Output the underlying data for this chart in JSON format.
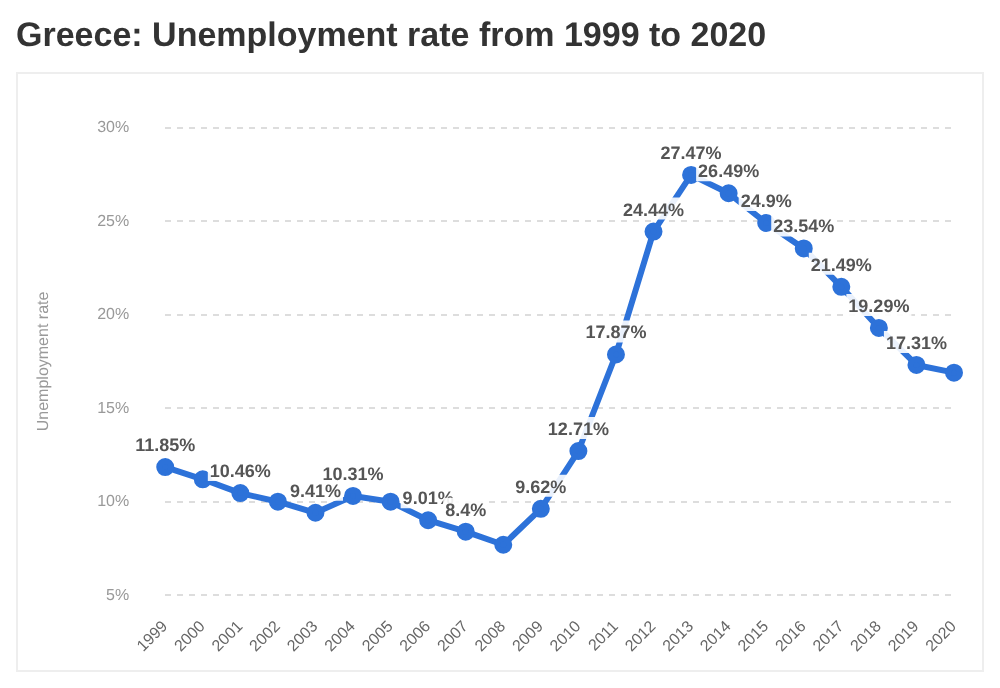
{
  "chart_data": {
    "type": "line",
    "title": "Greece: Unemployment rate from 1999 to 2020",
    "ylabel": "Unemployment rate",
    "categories": [
      "1999",
      "2000",
      "2001",
      "2002",
      "2003",
      "2004",
      "2005",
      "2006",
      "2007",
      "2008",
      "2009",
      "2010",
      "2011",
      "2012",
      "2013",
      "2014",
      "2015",
      "2016",
      "2017",
      "2018",
      "2019",
      "2020"
    ],
    "series": [
      {
        "color": "#2d72d9",
        "values": [
          11.85,
          11.2,
          10.46,
          10.0,
          9.41,
          10.31,
          10.0,
          9.01,
          8.4,
          7.7,
          9.62,
          12.71,
          17.87,
          24.44,
          27.47,
          26.49,
          24.9,
          23.54,
          21.49,
          19.29,
          17.31,
          16.9
        ],
        "value_labels": [
          "11.85%",
          null,
          "10.46%",
          null,
          "9.41%",
          "10.31%",
          null,
          "9.01%",
          "8.4%",
          null,
          "9.62%",
          "12.71%",
          "17.87%",
          "24.44%",
          "27.47%",
          "26.49%",
          "24.9%",
          "23.54%",
          "21.49%",
          "19.29%",
          "17.31%",
          null
        ]
      }
    ],
    "ylim": [
      5,
      30
    ],
    "yticks": [
      {
        "value": 5,
        "label": "5%"
      },
      {
        "value": 10,
        "label": "10%"
      },
      {
        "value": 15,
        "label": "15%"
      },
      {
        "value": 20,
        "label": "20%"
      },
      {
        "value": 25,
        "label": "25%"
      },
      {
        "value": 30,
        "label": "30%"
      }
    ],
    "grid": "y",
    "legend": false,
    "marker": "circle",
    "line_style": "solid"
  }
}
